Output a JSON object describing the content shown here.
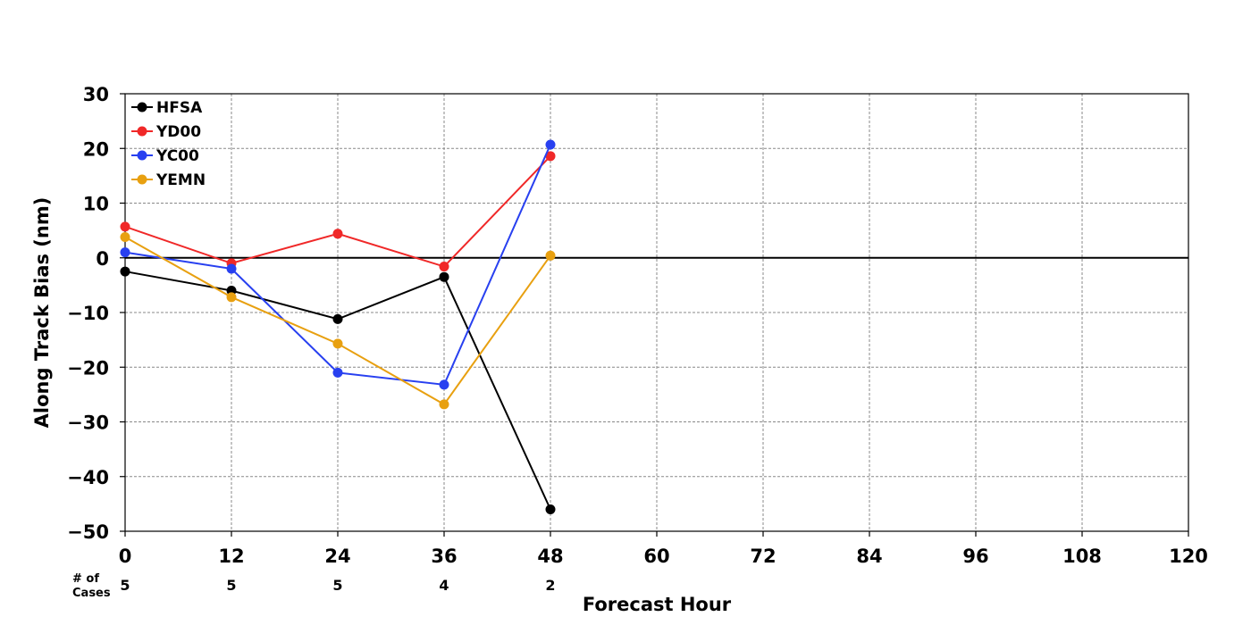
{
  "chart_data": {
    "type": "line",
    "xlabel": "Forecast Hour",
    "ylabel": "Along Track Bias (nm)",
    "x": [
      0,
      12,
      24,
      36,
      48
    ],
    "xlim": [
      0,
      120
    ],
    "ylim": [
      -50,
      30
    ],
    "xticks": [
      0,
      12,
      24,
      36,
      48,
      60,
      72,
      84,
      96,
      108,
      120
    ],
    "yticks": [
      30,
      20,
      10,
      0,
      -10,
      -20,
      -30,
      -40,
      -50
    ],
    "xtick_labels": [
      "0",
      "12",
      "24",
      "36",
      "48",
      "60",
      "72",
      "84",
      "96",
      "108",
      "120"
    ],
    "ytick_labels": [
      "30",
      "20",
      "10",
      "0",
      "−10",
      "−20",
      "−30",
      "−40",
      "−50"
    ],
    "grid": true,
    "legend_position": "top-left",
    "series": [
      {
        "name": "HFSA",
        "color": "#000000",
        "values": [
          -2.5,
          -6.0,
          -11.2,
          -3.5,
          -46.0
        ]
      },
      {
        "name": "YD00",
        "color": "#f02828",
        "values": [
          5.7,
          -1.0,
          4.4,
          -1.6,
          18.6
        ]
      },
      {
        "name": "YC00",
        "color": "#2840f0",
        "values": [
          1.0,
          -2.0,
          -21.0,
          -23.2,
          20.7
        ]
      },
      {
        "name": "YEMN",
        "color": "#e8a010",
        "values": [
          3.8,
          -7.2,
          -15.7,
          -26.8,
          0.4
        ]
      }
    ],
    "cases_label": [
      "# of",
      "Cases"
    ],
    "cases": [
      "5",
      "5",
      "5",
      "4",
      "2"
    ]
  }
}
